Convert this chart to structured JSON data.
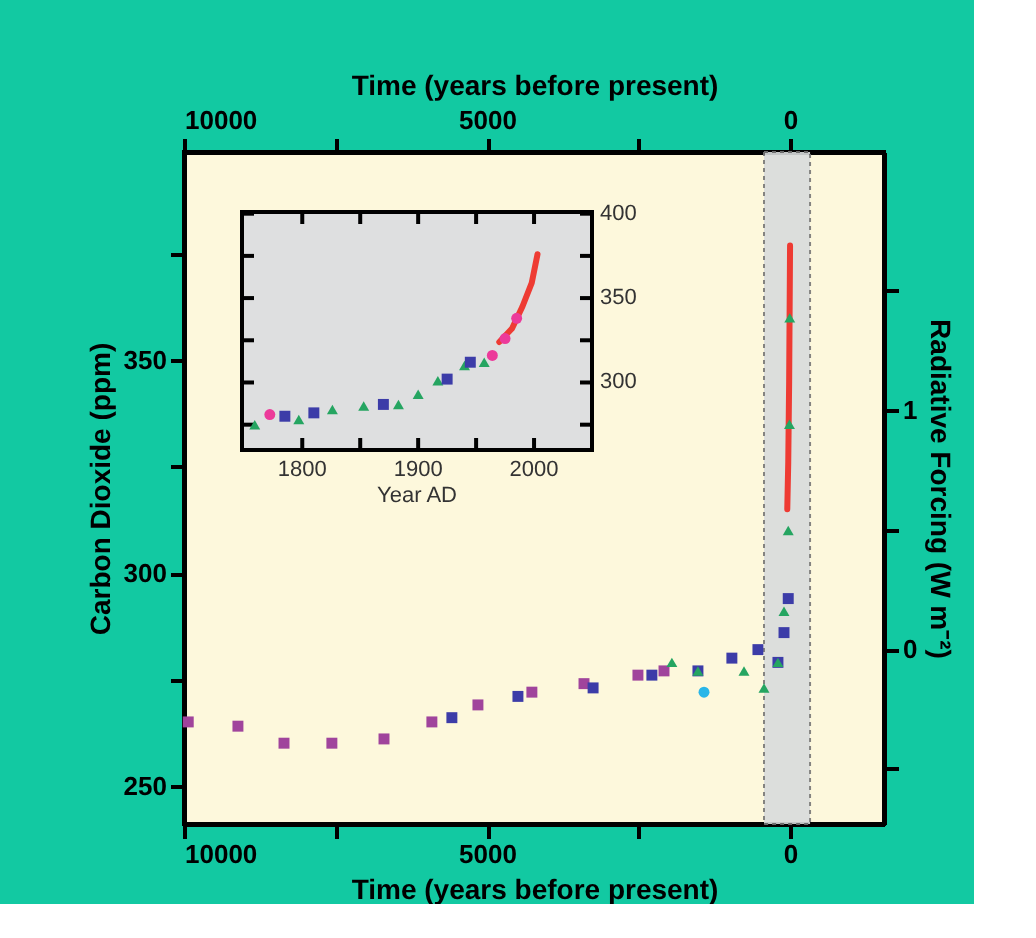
{
  "chart_data": [
    {
      "type": "scatter",
      "xlabel": "Time (years before present)",
      "x2label": "Time (years before present)",
      "ylabel": "Carbon Dioxide (ppm)",
      "y2label": "Radiative Forcing (W m⁻²)",
      "xlim": [
        10000,
        -1550
      ],
      "xticks": [
        10000,
        {
          "value": 7500,
          "label": null
        },
        5000,
        {
          "value": 2500,
          "label": null
        },
        0
      ],
      "x2lim": [
        10000,
        -1550
      ],
      "x2ticks": [
        10000,
        {
          "value": 7500,
          "label": null
        },
        5000,
        {
          "value": 2500,
          "label": null
        },
        0
      ],
      "ylim": [
        241,
        399
      ],
      "yticks": [
        250,
        {
          "value": 275,
          "label": null
        },
        300,
        {
          "value": 325,
          "label": null
        },
        350,
        {
          "value": 375,
          "label": null
        }
      ],
      "y2lim": [
        -0.73,
        2.08
      ],
      "y2ticks": [
        {
          "value": -0.5,
          "label": null
        },
        0,
        {
          "value": 0.5,
          "label": null
        },
        1,
        {
          "value": 1.5,
          "label": null
        }
      ],
      "bands": [
        {
          "axis": "x",
          "from": 430,
          "to": -330,
          "color": "#d9dcdc"
        }
      ],
      "series": [
        {
          "color": "#a0449c",
          "marker": "square",
          "x": [
            9930,
            9110,
            8350,
            7560,
            6700,
            5910,
            5150,
            4260,
            3400,
            2510,
            2080
          ],
          "values": [
            265,
            264,
            260,
            260,
            261,
            265,
            269,
            272,
            274,
            276,
            277
          ]
        },
        {
          "color": "#3c3ca8",
          "marker": "square",
          "x": [
            5580,
            4490,
            3250,
            2280,
            1520,
            960,
            530,
            200,
            100,
            30
          ],
          "values": [
            266,
            271,
            273,
            276,
            277,
            280,
            282,
            279,
            286,
            294
          ]
        },
        {
          "color": "#25a561",
          "marker": "triangle",
          "x": [
            1950,
            1520,
            760,
            430,
            200,
            100,
            30,
            10,
            5
          ],
          "values": [
            279,
            277,
            277,
            273,
            279,
            291,
            310,
            335,
            360
          ]
        },
        {
          "color": "#29b6e8",
          "marker": "circle",
          "x": [
            1420
          ],
          "values": [
            272
          ]
        },
        {
          "color": "#ee3b33",
          "type": "line",
          "x": [
            46,
            30,
            15,
            0
          ],
          "values": [
            315,
            326,
            345,
            377
          ]
        }
      ]
    },
    {
      "type": "scatter",
      "xlabel": "Year AD",
      "xlim": [
        1748,
        2050
      ],
      "xticks": [
        1800,
        {
          "value": 1850,
          "label": null
        },
        1900,
        {
          "value": 1950,
          "label": null
        },
        2000
      ],
      "ylim": [
        260,
        401
      ],
      "yticks": [
        {
          "value": 275,
          "label": null
        },
        300,
        {
          "value": 325,
          "label": null
        },
        350,
        {
          "value": 375,
          "label": null
        },
        400
      ],
      "series": [
        {
          "color": "#25a561",
          "marker": "triangle",
          "x": [
            1759,
            1797,
            1826,
            1853,
            1883,
            1900,
            1917,
            1940,
            1957
          ],
          "values": [
            275,
            278,
            284,
            286,
            287,
            293,
            301,
            310,
            312
          ]
        },
        {
          "color": "#3c3ca8",
          "marker": "square",
          "x": [
            1785,
            1810,
            1870,
            1925,
            1945
          ],
          "values": [
            280,
            282,
            287,
            302,
            312
          ]
        },
        {
          "color": "#ec3a9a",
          "marker": "circle",
          "x": [
            1772,
            1964,
            1975,
            1985
          ],
          "values": [
            281,
            316,
            326,
            338
          ]
        },
        {
          "color": "#ee3b33",
          "type": "line",
          "x": [
            1970,
            1981,
            1990,
            1998,
            2003
          ],
          "values": [
            324,
            332,
            345,
            359,
            376
          ]
        }
      ]
    }
  ]
}
